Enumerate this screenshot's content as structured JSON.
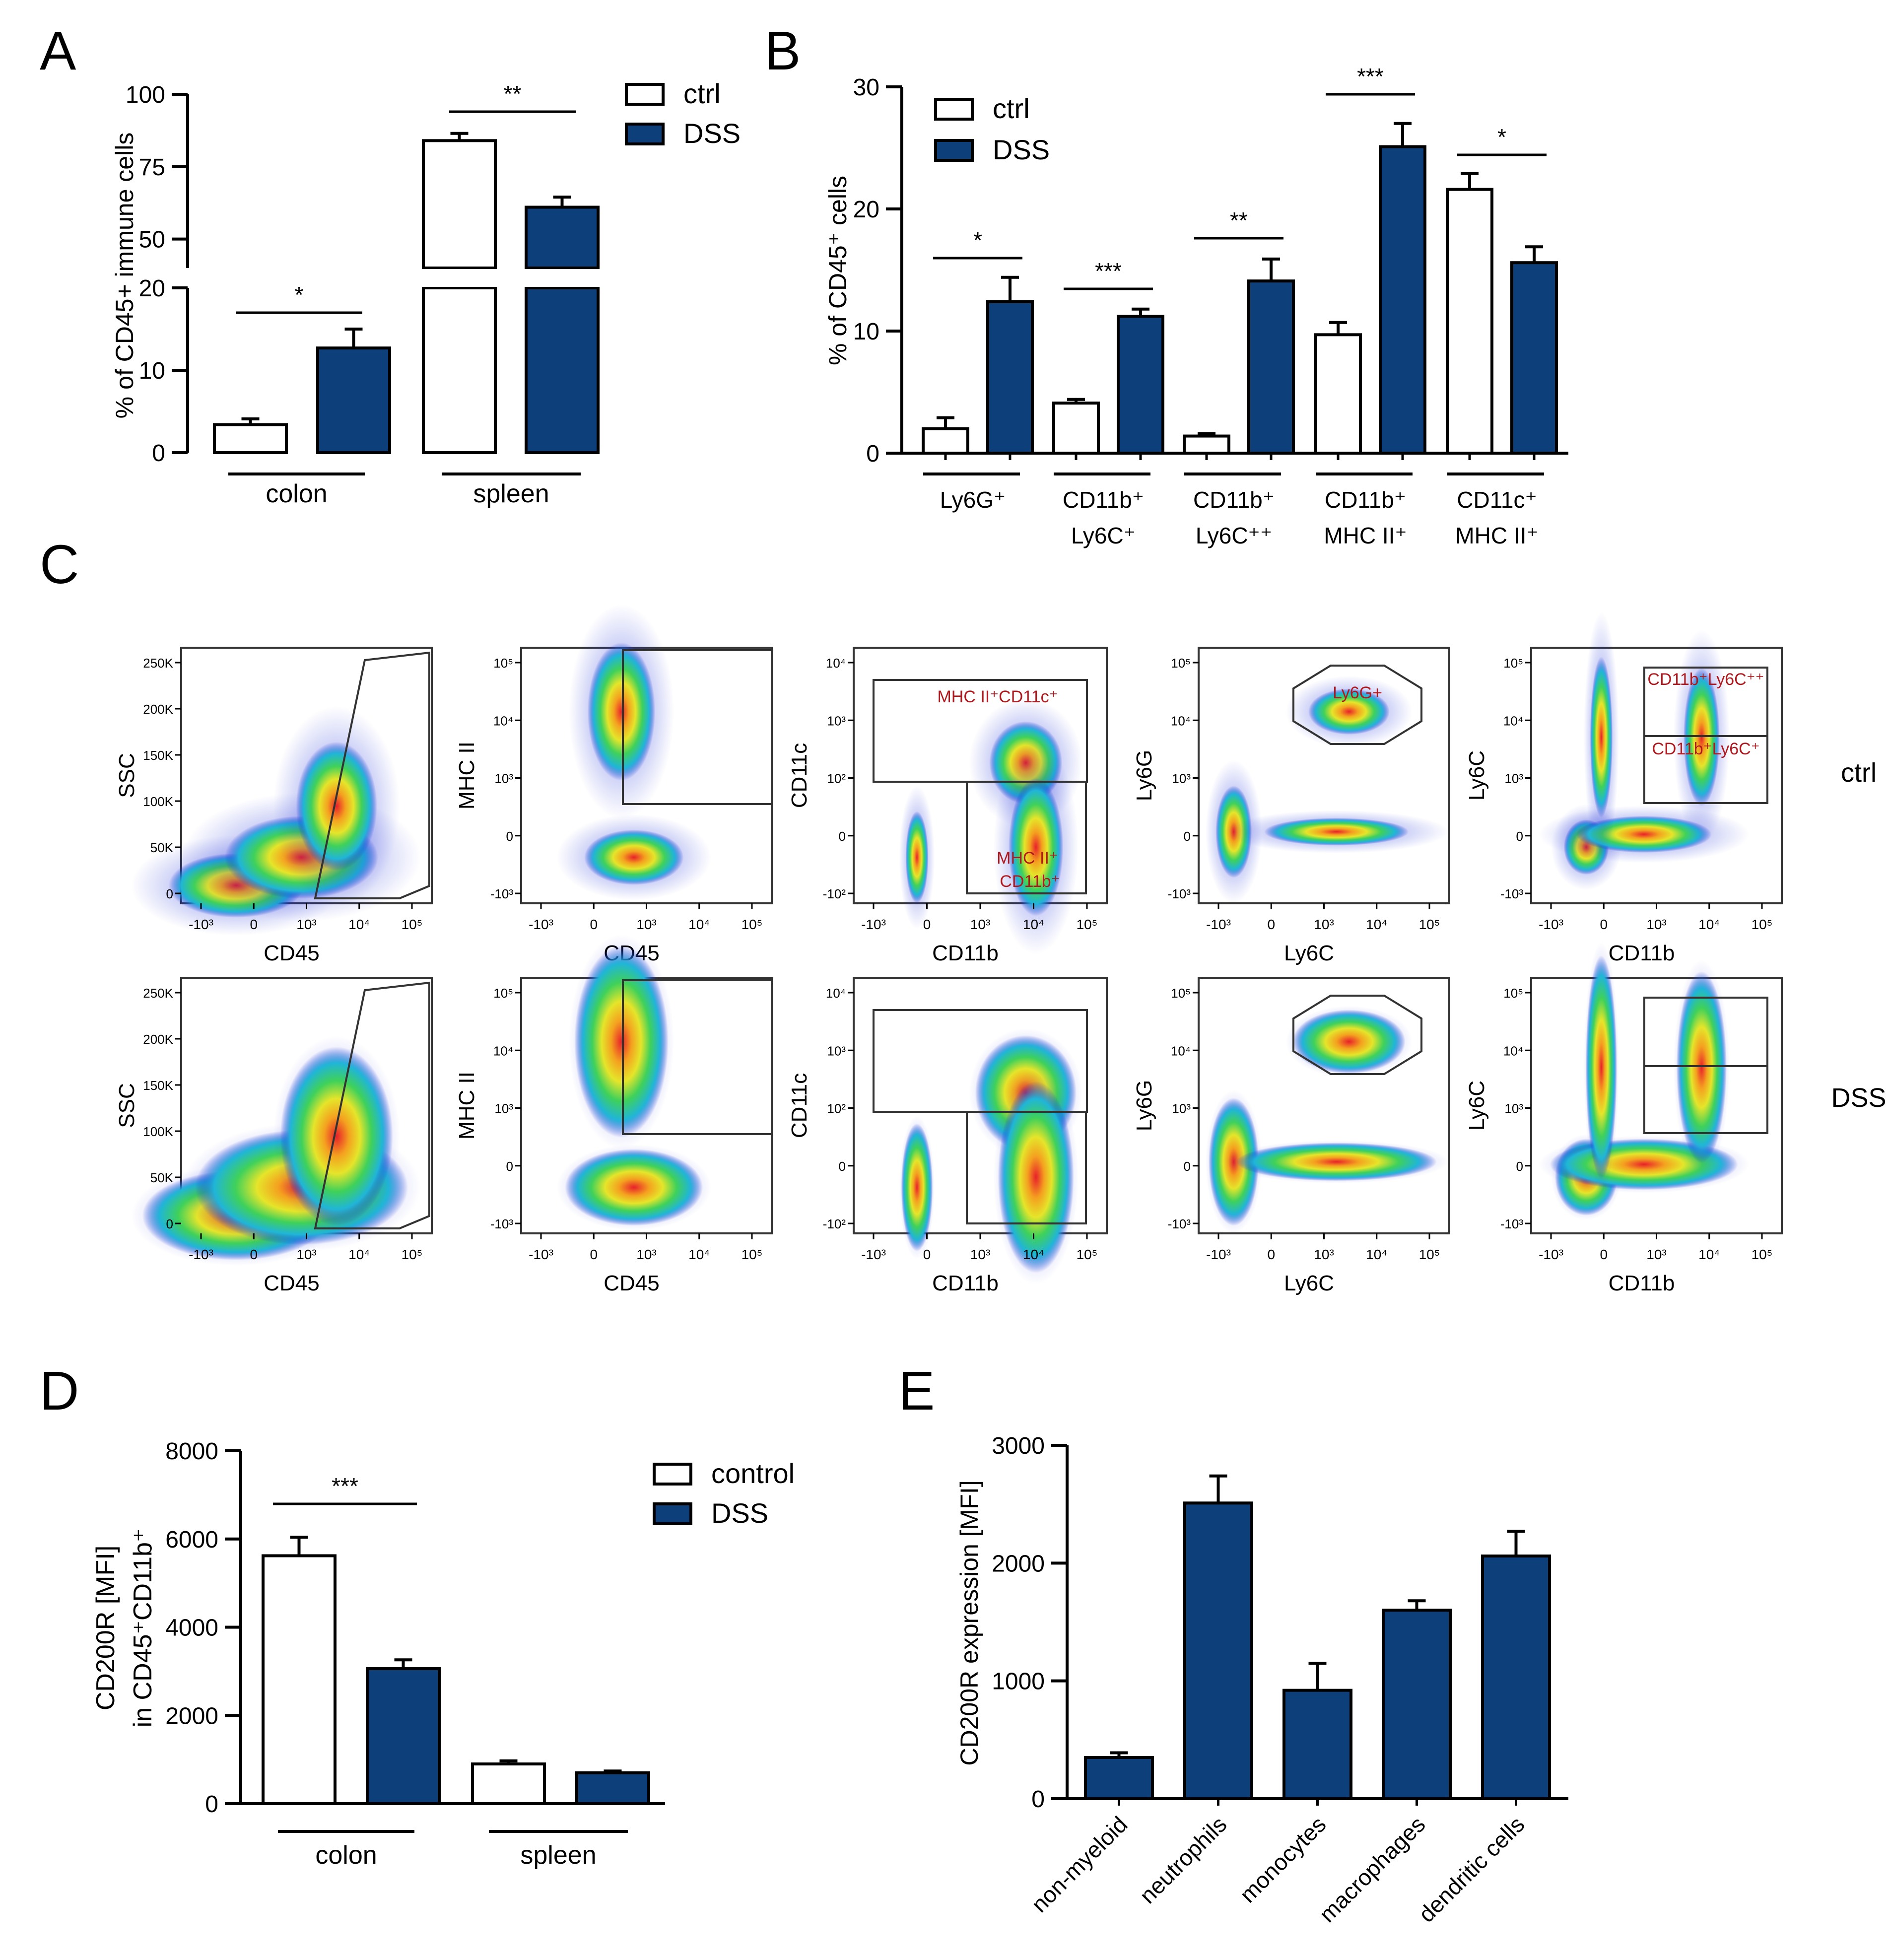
{
  "colors": {
    "ctrl": "#ffffff",
    "dss": "#0d3f7a",
    "gate_label": "#b0191e",
    "axis": "#000000",
    "gate": "#333333"
  },
  "chart_data": [
    {
      "panel": "A",
      "type": "bar",
      "ylabel": "% of CD45+ immune cells",
      "yticks_low": [
        0,
        10,
        20
      ],
      "yticks_high": [
        50,
        75,
        100
      ],
      "ylim_low": [
        0,
        20
      ],
      "ylim_high": [
        40,
        100
      ],
      "groups": [
        "colon",
        "spleen"
      ],
      "series": [
        {
          "name": "ctrl",
          "values": [
            3.4,
            84
          ],
          "errors": [
            0.7,
            2.5
          ]
        },
        {
          "name": "DSS",
          "values": [
            12.7,
            61
          ],
          "errors": [
            2.3,
            3.5
          ]
        }
      ],
      "significance": [
        "*",
        "**"
      ]
    },
    {
      "panel": "B",
      "type": "bar",
      "ylabel": "% of CD45⁺ cells",
      "yticks": [
        0,
        10,
        20,
        30
      ],
      "ylim": [
        0,
        30
      ],
      "groups": [
        [
          "Ly6G⁺"
        ],
        [
          "CD11b⁺",
          "Ly6C⁺"
        ],
        [
          "CD11b⁺",
          "Ly6C⁺⁺"
        ],
        [
          "CD11b⁺",
          "MHC II⁺"
        ],
        [
          "CD11c⁺",
          "MHC II⁺"
        ]
      ],
      "series": [
        {
          "name": "ctrl",
          "values": [
            2.0,
            4.1,
            1.4,
            9.7,
            21.6
          ],
          "errors": [
            0.9,
            0.3,
            0.2,
            1.0,
            1.3
          ]
        },
        {
          "name": "DSS",
          "values": [
            12.4,
            11.2,
            14.1,
            25.1,
            15.6
          ],
          "errors": [
            2.0,
            0.6,
            1.8,
            1.9,
            1.3
          ]
        }
      ],
      "significance": [
        "*",
        "***",
        "**",
        "***",
        "*"
      ]
    },
    {
      "panel": "D",
      "type": "bar",
      "ylabel": "CD200R [MFI]",
      "ylabel2": "in CD45⁺CD11b⁺",
      "yticks": [
        0,
        2000,
        4000,
        6000,
        8000
      ],
      "ylim": [
        0,
        8000
      ],
      "groups": [
        "colon",
        "spleen"
      ],
      "series": [
        {
          "name": "control",
          "values": [
            5620,
            900
          ],
          "errors": [
            420,
            70
          ]
        },
        {
          "name": "DSS",
          "values": [
            3060,
            700
          ],
          "errors": [
            200,
            40
          ]
        }
      ],
      "significance": [
        "***"
      ]
    },
    {
      "panel": "E",
      "type": "bar",
      "ylabel": "CD200R expression [MFI]",
      "yticks": [
        0,
        1000,
        2000,
        3000
      ],
      "ylim": [
        0,
        3000
      ],
      "categories": [
        "non-myeloid",
        "neutrophils",
        "monocytes",
        "macrophages",
        "dendritic cells"
      ],
      "values": [
        350,
        2510,
        920,
        1600,
        2060
      ],
      "errors": [
        40,
        230,
        230,
        80,
        210
      ]
    }
  ],
  "panels": {
    "A": "A",
    "B": "B",
    "C": "C",
    "D": "D",
    "E": "E"
  },
  "flow": {
    "rows": [
      "ctrl",
      "DSS"
    ],
    "plots": [
      {
        "xlabel": "CD45",
        "ylabel": "SSC",
        "xticks": [
          "-10³",
          "0",
          "10³",
          "10⁴",
          "10⁵"
        ],
        "yticks": [
          "0",
          "50K",
          "100K",
          "150K",
          "200K",
          "250K"
        ]
      },
      {
        "xlabel": "CD45",
        "ylabel": "MHC II",
        "xticks": [
          "-10³",
          "0",
          "10³",
          "10⁴",
          "10⁵"
        ],
        "yticks": [
          "-10³",
          "0",
          "10³",
          "10⁴",
          "10⁵"
        ]
      },
      {
        "xlabel": "CD11b",
        "ylabel": "CD11c",
        "xticks": [
          "-10³",
          "0",
          "10³",
          "10⁴",
          "10⁵"
        ],
        "yticks": [
          "-10²",
          "0",
          "10²",
          "10³",
          "10⁴"
        ],
        "gates": [
          "MHC II⁺CD11c⁺",
          "MHC II⁺",
          "CD11b⁺"
        ]
      },
      {
        "xlabel": "Ly6C",
        "ylabel": "Ly6G",
        "xticks": [
          "-10³",
          "0",
          "10³",
          "10⁴",
          "10⁵"
        ],
        "yticks": [
          "-10³",
          "0",
          "10³",
          "10⁴",
          "10⁵"
        ],
        "gates": [
          "Ly6G+"
        ]
      },
      {
        "xlabel": "CD11b",
        "ylabel": "Ly6C",
        "xticks": [
          "-10³",
          "0",
          "10³",
          "10⁴",
          "10⁵"
        ],
        "yticks": [
          "-10³",
          "0",
          "10³",
          "10⁴",
          "10⁵"
        ],
        "gates": [
          "CD11b⁺Ly6C⁺⁺",
          "CD11b⁺Ly6C⁺"
        ]
      }
    ]
  }
}
